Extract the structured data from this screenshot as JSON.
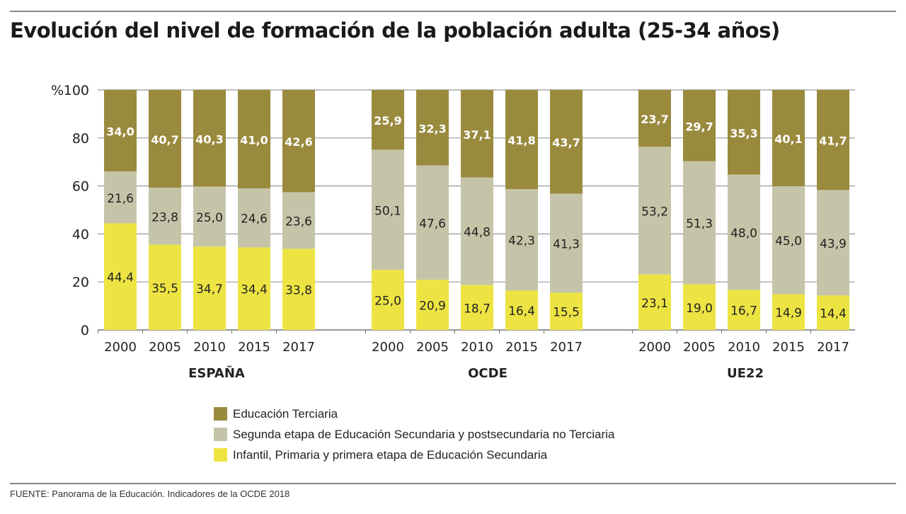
{
  "chart_data": {
    "type": "bar",
    "stacked": true,
    "title": "Evolución del nivel de formación de la población adulta (25-34 años)",
    "ylabel": "%",
    "ylim": [
      0,
      100
    ],
    "yticks": [
      0,
      20,
      40,
      60,
      80,
      100
    ],
    "grid": true,
    "legend_placement": "bottom",
    "groups": [
      {
        "name": "ESPAÑA",
        "categories": [
          "2000",
          "2005",
          "2010",
          "2015",
          "2017"
        ],
        "primary": [
          44.4,
          35.5,
          34.7,
          34.4,
          33.8
        ],
        "secondary": [
          21.6,
          23.8,
          25.0,
          24.6,
          23.6
        ],
        "tertiary": [
          34.0,
          40.7,
          40.3,
          41.0,
          42.6
        ]
      },
      {
        "name": "OCDE",
        "categories": [
          "2000",
          "2005",
          "2010",
          "2015",
          "2017"
        ],
        "primary": [
          25.0,
          20.9,
          18.7,
          16.4,
          15.5
        ],
        "secondary": [
          50.1,
          47.6,
          44.8,
          42.3,
          41.3
        ],
        "tertiary": [
          25.9,
          32.3,
          37.1,
          41.8,
          43.7
        ]
      },
      {
        "name": "UE22",
        "categories": [
          "2000",
          "2005",
          "2010",
          "2015",
          "2017"
        ],
        "primary": [
          23.1,
          19.0,
          16.7,
          14.9,
          14.4
        ],
        "secondary": [
          53.2,
          51.3,
          48.0,
          45.0,
          43.9
        ],
        "tertiary": [
          23.7,
          29.7,
          35.3,
          40.1,
          41.7
        ]
      }
    ],
    "series": [
      {
        "key": "tertiary",
        "name": "Educación Terciaria",
        "color": "#9a8a3e"
      },
      {
        "key": "secondary",
        "name": "Segunda etapa de Educación Secundaria y postsecundaria no Terciaria",
        "color": "#c6c4a8"
      },
      {
        "key": "primary",
        "name": "Infantil, Primaria y primera etapa de Educación Secundaria",
        "color": "#ede443"
      }
    ]
  },
  "source": "FUENTE:  Panorama de la Educación. Indicadores de la OCDE 2018"
}
